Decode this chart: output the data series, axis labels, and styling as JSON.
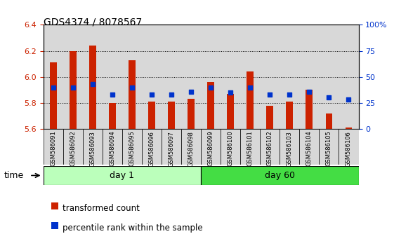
{
  "title": "GDS4374 / 8078567",
  "samples": [
    "GSM586091",
    "GSM586092",
    "GSM586093",
    "GSM586094",
    "GSM586095",
    "GSM586096",
    "GSM586097",
    "GSM586098",
    "GSM586099",
    "GSM586100",
    "GSM586101",
    "GSM586102",
    "GSM586103",
    "GSM586104",
    "GSM586105",
    "GSM586106"
  ],
  "bar_values": [
    6.11,
    6.2,
    6.24,
    5.8,
    6.13,
    5.81,
    5.81,
    5.83,
    5.96,
    5.87,
    6.04,
    5.78,
    5.81,
    5.9,
    5.72,
    5.61
  ],
  "dot_percentiles": [
    40,
    40,
    43,
    33,
    40,
    33,
    33,
    36,
    40,
    35,
    40,
    33,
    33,
    36,
    30,
    28
  ],
  "ylim": [
    5.6,
    6.4
  ],
  "yticks": [
    5.6,
    5.8,
    6.0,
    6.2,
    6.4
  ],
  "right_yticks": [
    0,
    25,
    50,
    75,
    100
  ],
  "bar_color": "#cc2200",
  "dot_color": "#0033cc",
  "baseline": 5.6,
  "day1_count": 8,
  "day60_count": 8,
  "day1_label": "day 1",
  "day60_label": "day 60",
  "day1_color": "#bbffbb",
  "day60_color": "#44dd44",
  "legend_bar_label": "transformed count",
  "legend_dot_label": "percentile rank within the sample",
  "time_label": "time",
  "bar_width": 0.35,
  "col_bg_color": "#d8d8d8",
  "title_fontsize": 10,
  "tick_fontsize": 7,
  "legend_fontsize": 8.5
}
